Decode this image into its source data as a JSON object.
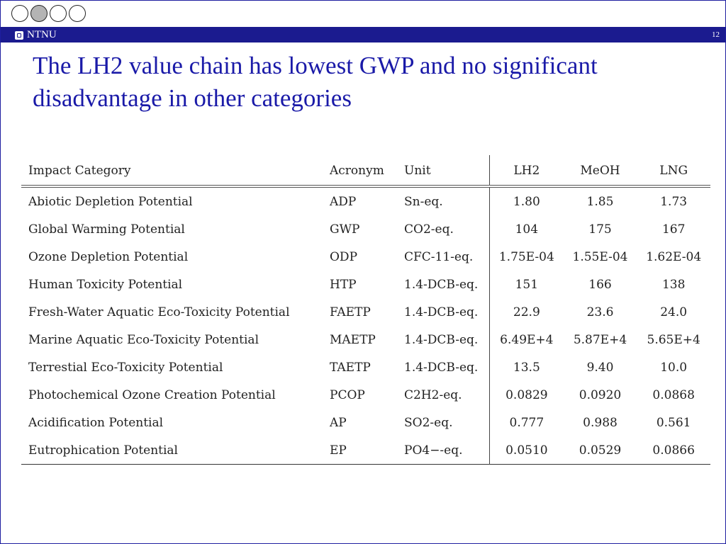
{
  "nav": {
    "circles": 4,
    "active_index": 1
  },
  "header": {
    "logo_text": "NTNU",
    "page_number": "12"
  },
  "slide": {
    "title_line1": "The LH2 value chain has lowest GWP and no significant",
    "title_line2": "disadvantage in other categories"
  },
  "table": {
    "headers": [
      "Impact Category",
      "Acronym",
      "Unit",
      "LH2",
      "MeOH",
      "LNG"
    ],
    "rows": [
      {
        "category": "Abiotic Depletion Potential",
        "acronym": "ADP",
        "unit": "Sn-eq.",
        "lh2": "1.80",
        "meoh": "1.85",
        "lng": "1.73"
      },
      {
        "category": "Global Warming Potential",
        "acronym": "GWP",
        "unit": "CO2-eq.",
        "lh2": "104",
        "meoh": "175",
        "lng": "167"
      },
      {
        "category": "Ozone Depletion Potential",
        "acronym": "ODP",
        "unit": "CFC-11-eq.",
        "lh2": "1.75E-04",
        "meoh": "1.55E-04",
        "lng": "1.62E-04"
      },
      {
        "category": "Human Toxicity Potential",
        "acronym": "HTP",
        "unit": "1.4-DCB-eq.",
        "lh2": "151",
        "meoh": "166",
        "lng": "138"
      },
      {
        "category": "Fresh-Water Aquatic Eco-Toxicity Potential",
        "acronym": "FAETP",
        "unit": "1.4-DCB-eq.",
        "lh2": "22.9",
        "meoh": "23.6",
        "lng": "24.0"
      },
      {
        "category": "Marine Aquatic Eco-Toxicity Potential",
        "acronym": "MAETP",
        "unit": "1.4-DCB-eq.",
        "lh2": "6.49E+4",
        "meoh": "5.87E+4",
        "lng": "5.65E+4"
      },
      {
        "category": "Terrestial Eco-Toxicity Potential",
        "acronym": "TAETP",
        "unit": "1.4-DCB-eq.",
        "lh2": "13.5",
        "meoh": "9.40",
        "lng": "10.0"
      },
      {
        "category": "Photochemical Ozone Creation Potential",
        "acronym": "PCOP",
        "unit": "C2H2-eq.",
        "lh2": "0.0829",
        "meoh": "0.0920",
        "lng": "0.0868"
      },
      {
        "category": "Acidification Potential",
        "acronym": "AP",
        "unit": "SO2-eq.",
        "lh2": "0.777",
        "meoh": "0.988",
        "lng": "0.561"
      },
      {
        "category": "Eutrophication Potential",
        "acronym": "EP",
        "unit": "PO4−-eq.",
        "lh2": "0.0510",
        "meoh": "0.0529",
        "lng": "0.0866"
      }
    ]
  }
}
